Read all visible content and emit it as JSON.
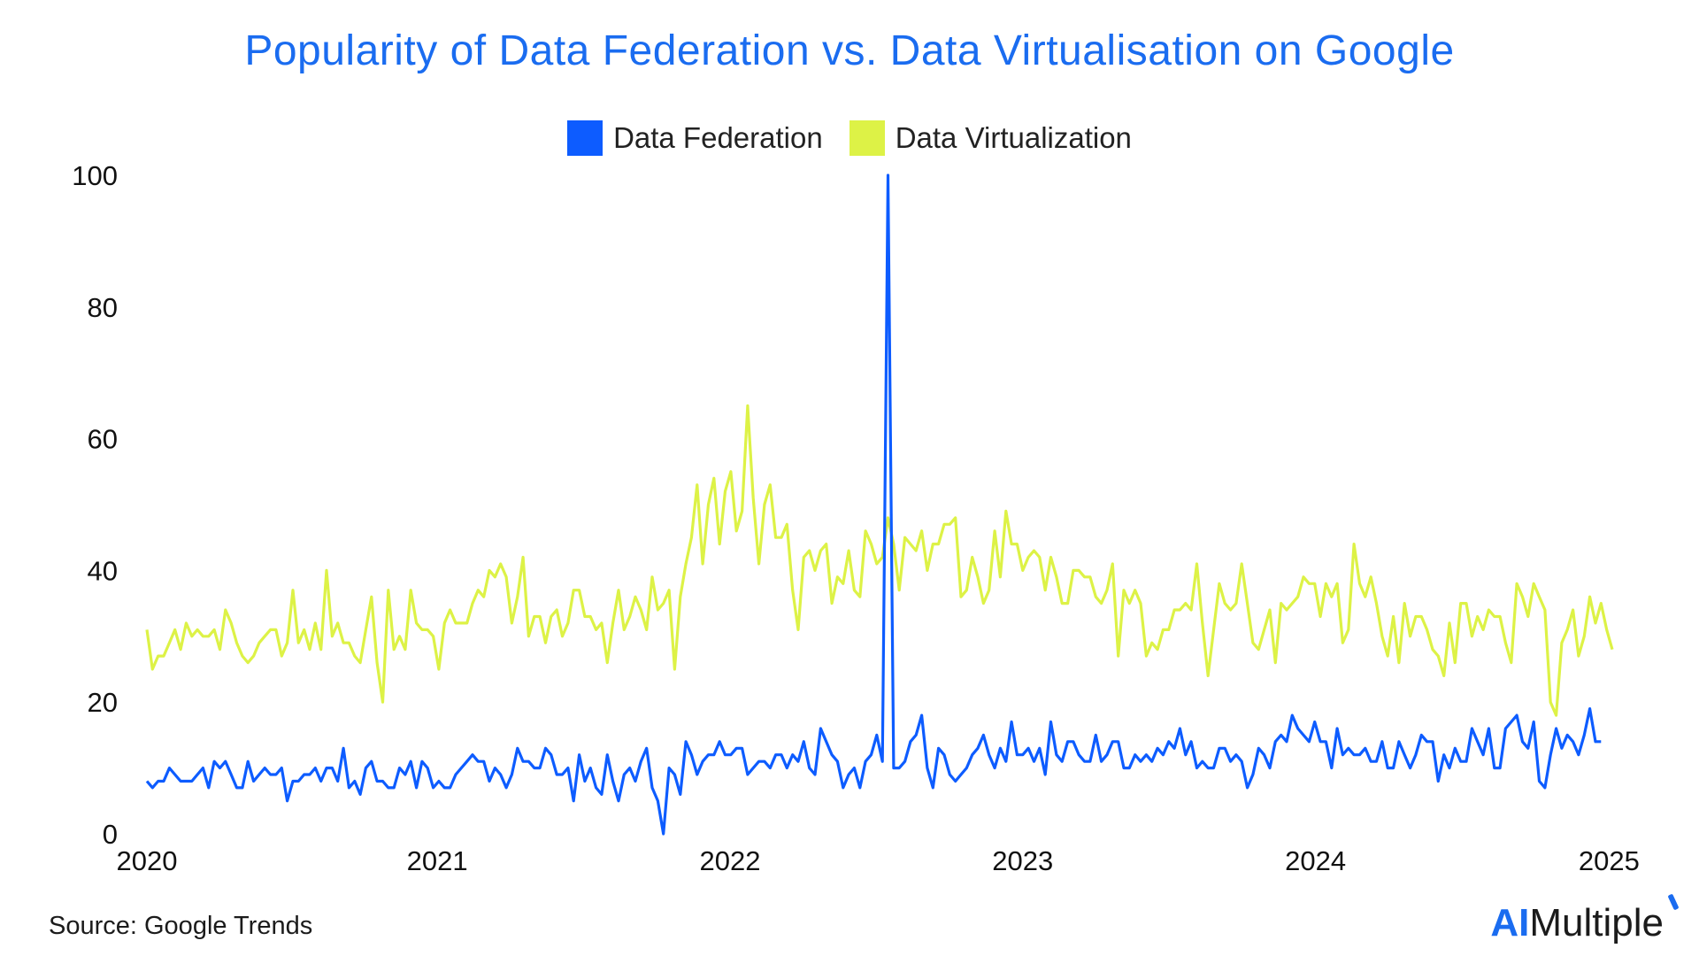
{
  "chart_data": {
    "type": "line",
    "title": "Popularity of Data Federation vs. Data Virtualisation on Google",
    "xlabel": "",
    "ylabel": "",
    "ylim": [
      0,
      100
    ],
    "xlim": [
      "2020-01-05",
      "2025-03-09"
    ],
    "yticks": [
      0,
      20,
      40,
      60,
      80,
      100
    ],
    "xticks": [
      {
        "label": "2020",
        "date": "2020-01-01"
      },
      {
        "label": "2021",
        "date": "2021-01-01"
      },
      {
        "label": "2022",
        "date": "2022-01-01"
      },
      {
        "label": "2023",
        "date": "2023-01-01"
      },
      {
        "label": "2024",
        "date": "2024-01-01"
      },
      {
        "label": "2025",
        "date": "2025-01-01"
      }
    ],
    "grid": false,
    "legend_position": "top-center",
    "x_interval": "weekly",
    "series": [
      {
        "name": "Data Federation",
        "color": "#0d5cff",
        "values": [
          8,
          7,
          8,
          8,
          10,
          9,
          8,
          8,
          8,
          9,
          10,
          7,
          11,
          10,
          11,
          9,
          7,
          7,
          11,
          8,
          9,
          10,
          9,
          9,
          10,
          5,
          8,
          8,
          9,
          9,
          10,
          8,
          10,
          10,
          8,
          13,
          7,
          8,
          6,
          10,
          11,
          8,
          8,
          7,
          7,
          10,
          9,
          11,
          7,
          11,
          10,
          7,
          8,
          7,
          7,
          9,
          10,
          11,
          12,
          11,
          11,
          8,
          10,
          9,
          7,
          9,
          13,
          11,
          11,
          10,
          10,
          13,
          12,
          9,
          9,
          10,
          5,
          12,
          8,
          10,
          7,
          6,
          12,
          8,
          5,
          9,
          10,
          8,
          11,
          13,
          7,
          5,
          0,
          10,
          9,
          6,
          14,
          12,
          9,
          11,
          12,
          12,
          14,
          12,
          12,
          13,
          13,
          9,
          10,
          11,
          11,
          10,
          12,
          12,
          10,
          12,
          11,
          14,
          10,
          9,
          16,
          14,
          12,
          11,
          7,
          9,
          10,
          7,
          11,
          12,
          15,
          11,
          100,
          10,
          10,
          11,
          14,
          15,
          18,
          10,
          7,
          13,
          12,
          9,
          8,
          9,
          10,
          12,
          13,
          15,
          12,
          10,
          13,
          11,
          17,
          12,
          12,
          13,
          11,
          13,
          9,
          17,
          12,
          11,
          14,
          14,
          12,
          11,
          11,
          15,
          11,
          12,
          14,
          14,
          10,
          10,
          12,
          11,
          12,
          11,
          13,
          12,
          14,
          13,
          16,
          12,
          14,
          10,
          11,
          10,
          10,
          13,
          13,
          11,
          12,
          11,
          7,
          9,
          13,
          12,
          10,
          14,
          15,
          14,
          18,
          16,
          15,
          14,
          17,
          14,
          14,
          10,
          16,
          12,
          13,
          12,
          12,
          13,
          11,
          11,
          14,
          10,
          10,
          14,
          12,
          10,
          12,
          15,
          14,
          14,
          8,
          12,
          10,
          13,
          11,
          11,
          16,
          14,
          12,
          16,
          10,
          10,
          16,
          17,
          18,
          14,
          13,
          17,
          8,
          7,
          12,
          16,
          13,
          15,
          14,
          12,
          15,
          19,
          14,
          14
        ]
      },
      {
        "name": "Data Virtualization",
        "color": "#ddf246",
        "values": [
          31,
          25,
          27,
          27,
          29,
          31,
          28,
          32,
          30,
          31,
          30,
          30,
          31,
          28,
          34,
          32,
          29,
          27,
          26,
          27,
          29,
          30,
          31,
          31,
          27,
          29,
          37,
          29,
          31,
          28,
          32,
          28,
          40,
          30,
          32,
          29,
          29,
          27,
          26,
          31,
          36,
          26,
          20,
          37,
          28,
          30,
          28,
          37,
          32,
          31,
          31,
          30,
          25,
          32,
          34,
          32,
          32,
          32,
          35,
          37,
          36,
          40,
          39,
          41,
          39,
          32,
          36,
          42,
          30,
          33,
          33,
          29,
          33,
          34,
          30,
          32,
          37,
          37,
          33,
          33,
          31,
          32,
          26,
          32,
          37,
          31,
          33,
          36,
          34,
          31,
          39,
          34,
          35,
          37,
          25,
          36,
          41,
          45,
          53,
          41,
          50,
          54,
          44,
          52,
          55,
          46,
          49,
          65,
          51,
          41,
          50,
          53,
          45,
          45,
          47,
          37,
          31,
          42,
          43,
          40,
          43,
          44,
          35,
          39,
          38,
          43,
          37,
          36,
          46,
          44,
          41,
          42,
          48,
          44,
          37,
          45,
          44,
          43,
          46,
          40,
          44,
          44,
          47,
          47,
          48,
          36,
          37,
          42,
          39,
          35,
          37,
          46,
          39,
          49,
          44,
          44,
          40,
          42,
          43,
          42,
          37,
          42,
          39,
          35,
          35,
          40,
          40,
          39,
          39,
          36,
          35,
          37,
          41,
          27,
          37,
          35,
          37,
          35,
          27,
          29,
          28,
          31,
          31,
          34,
          34,
          35,
          34,
          41,
          32,
          24,
          31,
          38,
          35,
          34,
          35,
          41,
          35,
          29,
          28,
          31,
          34,
          26,
          35,
          34,
          35,
          36,
          39,
          38,
          38,
          33,
          38,
          36,
          38,
          29,
          31,
          44,
          38,
          36,
          39,
          35,
          30,
          27,
          33,
          26,
          35,
          30,
          33,
          33,
          31,
          28,
          27,
          24,
          32,
          26,
          35,
          35,
          30,
          33,
          31,
          34,
          33,
          33,
          29,
          26,
          38,
          36,
          33,
          38,
          36,
          34,
          20,
          18,
          29,
          31,
          34,
          27,
          30,
          36,
          32,
          35,
          31,
          28
        ]
      }
    ]
  },
  "footer": {
    "source": "Source: Google Trends",
    "brand_ai": "AI",
    "brand_rest": "Multiple"
  }
}
